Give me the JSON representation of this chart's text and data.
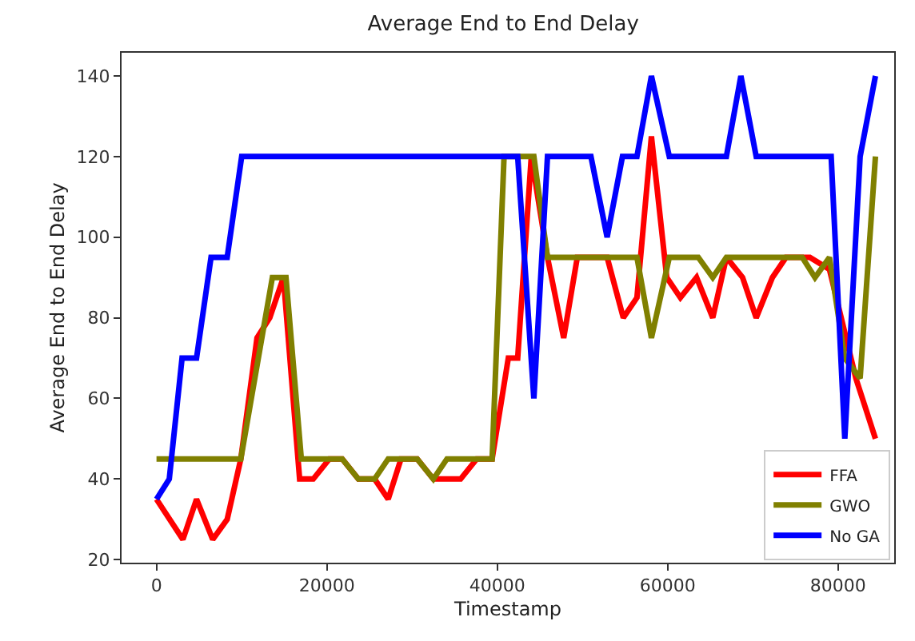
{
  "chart_data": {
    "type": "line",
    "title": "Average End to End Delay",
    "xlabel": "Timestamp",
    "ylabel": "Average End to End Delay",
    "xlim": [
      -4100,
      86600
    ],
    "xticks": [
      0,
      20000,
      40000,
      60000,
      80000
    ],
    "ylim": [
      19.25,
      145.75
    ],
    "yticks": [
      20,
      40,
      60,
      80,
      100,
      120,
      140
    ],
    "grid": false,
    "legend": "bottom right",
    "marker": "none",
    "line_style": "solid",
    "series": [
      {
        "name": "FFA",
        "color": "#ff0000",
        "x": [
          0,
          3100,
          4700,
          6600,
          8300,
          9900,
          11800,
          13300,
          14900,
          16800,
          18400,
          20300,
          21800,
          23700,
          25600,
          27200,
          28700,
          30600,
          32500,
          35700,
          37600,
          39400,
          41300,
          42400,
          44000,
          45900,
          47800,
          49400,
          52900,
          54800,
          56400,
          58100,
          59900,
          61500,
          63400,
          65300,
          66900,
          68800,
          70400,
          72300,
          73900,
          76700,
          79000,
          82100,
          84400
        ],
        "values": [
          35,
          25,
          35,
          25,
          30,
          45,
          75,
          80,
          90,
          40,
          40,
          45,
          45,
          40,
          40,
          35,
          45,
          45,
          40,
          40,
          45,
          45,
          70,
          70,
          120,
          95,
          75,
          95,
          95,
          80,
          85,
          125,
          90,
          85,
          90,
          80,
          95,
          90,
          80,
          90,
          95,
          95,
          92,
          65,
          50
        ]
      },
      {
        "name": "GWO",
        "color": "#808000",
        "x": [
          0,
          9900,
          13600,
          15200,
          17000,
          21800,
          23700,
          25600,
          27200,
          30600,
          32500,
          34100,
          39400,
          40800,
          44300,
          45900,
          56400,
          58100,
          60200,
          62000,
          63600,
          65300,
          66900,
          75800,
          77300,
          79000,
          80800,
          82600,
          84400
        ],
        "values": [
          45,
          45,
          90,
          90,
          45,
          45,
          40,
          40,
          45,
          45,
          40,
          45,
          45,
          120,
          120,
          95,
          95,
          75,
          95,
          95,
          95,
          90,
          95,
          95,
          90,
          95,
          70,
          65,
          120
        ]
      },
      {
        "name": "No GA",
        "color": "#0000ff",
        "x": [
          0,
          1500,
          3000,
          4700,
          6400,
          8300,
          10000,
          42400,
          44300,
          45900,
          51000,
          52900,
          54700,
          56400,
          58100,
          60200,
          66900,
          68600,
          70400,
          79200,
          80800,
          82600,
          84400
        ],
        "values": [
          35,
          40,
          70,
          70,
          95,
          95,
          120,
          120,
          60,
          120,
          120,
          100,
          120,
          120,
          140,
          120,
          120,
          140,
          120,
          120,
          50,
          120,
          140
        ]
      }
    ]
  }
}
